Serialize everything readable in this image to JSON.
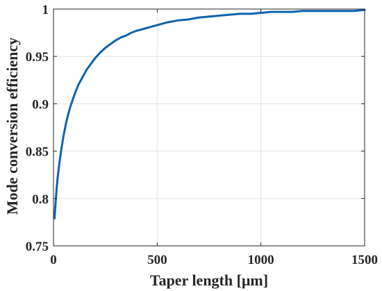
{
  "chart_data": {
    "type": "line",
    "title": "",
    "xlabel": "Taper length [μm]",
    "ylabel": "Mode conversion efficiency",
    "xlim": [
      0,
      1500
    ],
    "ylim": [
      0.75,
      1
    ],
    "xticks": [
      0,
      500,
      1000,
      1500
    ],
    "yticks": [
      0.75,
      0.8,
      0.85,
      0.9,
      0.95,
      1
    ],
    "xtick_labels": [
      "0",
      "500",
      "1000",
      "1500"
    ],
    "ytick_labels": [
      "0.75",
      "0.8",
      "0.85",
      "0.9",
      "0.95",
      "1"
    ],
    "grid": true,
    "legend": "none",
    "series": [
      {
        "color": "#0b63ae",
        "x": [
          5,
          10,
          15,
          20,
          30,
          40,
          50,
          60,
          70,
          80,
          100,
          120,
          140,
          160,
          180,
          200,
          225,
          250,
          275,
          300,
          325,
          350,
          375,
          400,
          450,
          500,
          550,
          600,
          650,
          700,
          750,
          800,
          850,
          900,
          950,
          1000,
          1050,
          1100,
          1150,
          1200,
          1250,
          1300,
          1350,
          1400,
          1450,
          1500
        ],
        "y": [
          0.779,
          0.795,
          0.81,
          0.822,
          0.84,
          0.855,
          0.868,
          0.879,
          0.888,
          0.896,
          0.909,
          0.92,
          0.928,
          0.936,
          0.942,
          0.948,
          0.954,
          0.959,
          0.963,
          0.967,
          0.97,
          0.972,
          0.975,
          0.977,
          0.98,
          0.983,
          0.986,
          0.988,
          0.989,
          0.991,
          0.992,
          0.993,
          0.994,
          0.995,
          0.995,
          0.996,
          0.997,
          0.997,
          0.997,
          0.998,
          0.998,
          0.998,
          0.998,
          0.998,
          0.998,
          0.999
        ]
      }
    ]
  }
}
